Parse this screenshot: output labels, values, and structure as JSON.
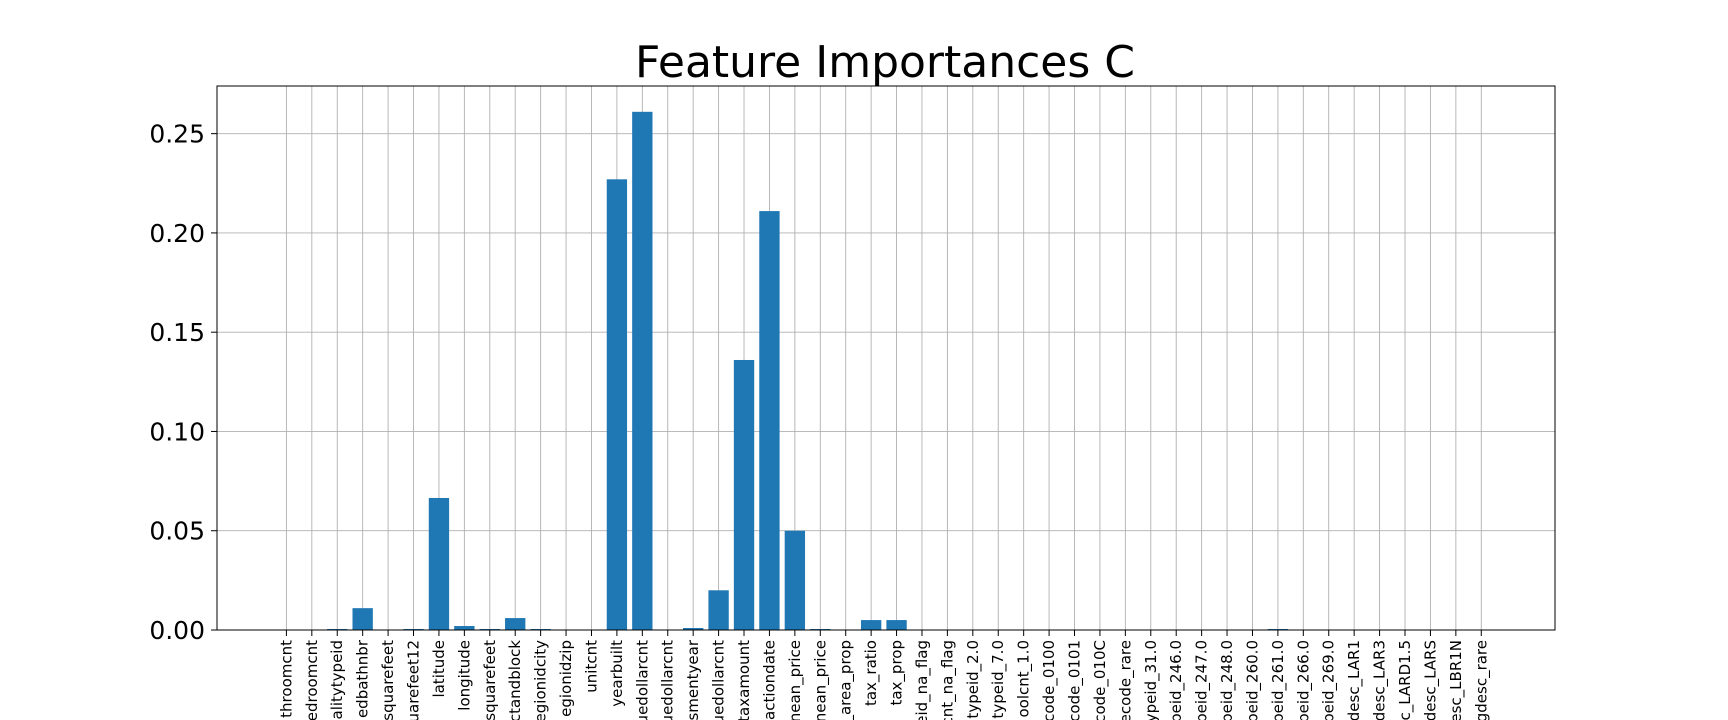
{
  "chart_data": {
    "type": "bar",
    "title": "Feature Importances C",
    "categories": [
      "throomcnt",
      "edroomcnt",
      "alitytypeid",
      "edbathnbr",
      "squarefeet",
      "uarefeet12",
      "latitude",
      "longitude",
      "squarefeet",
      "ctandblock",
      "egionidcity",
      "egionidzip",
      "unitcnt",
      "yearbuilt",
      "uedollarcnt",
      "uedollarcnt",
      "smentyear",
      "uedollarcnt",
      "taxamount",
      "actiondate",
      "nean_price",
      "nean_price",
      "_area_prop",
      "tax_ratio",
      "tax_prop",
      "eid_na_flag",
      "cnt_na_flag",
      "typeid_2.0",
      "typeid_7.0",
      "oolcnt_1.0",
      "code_0100",
      "code_0101",
      "code_010C",
      "ecode_rare",
      "ypeid_31.0",
      "peid_246.0",
      "peid_247.0",
      "peid_248.0",
      "peid_260.0",
      "peid_261.0",
      "peid_266.0",
      "peid_269.0",
      "desc_LAR1",
      "desc_LAR3",
      "c_LARD1.5",
      "desc_LARS",
      "esc_LBR1N",
      "gdesc_rare"
    ],
    "values": [
      0,
      0,
      0.0005,
      0.011,
      0,
      0.0005,
      0.0665,
      0.002,
      0.0005,
      0.006,
      0.0005,
      0,
      0,
      0.227,
      0.261,
      0,
      0.001,
      0.02,
      0.136,
      0.211,
      0.05,
      0.0005,
      0,
      0.005,
      0.005,
      0,
      0,
      0,
      0,
      0,
      0,
      0,
      0,
      0,
      0,
      0,
      0,
      0,
      0,
      0.0005,
      0,
      0,
      0,
      0,
      0,
      0,
      0,
      0
    ],
    "color": "#1f77b4",
    "ylim": [
      0,
      0.274
    ],
    "yticks": [
      {
        "value": 0,
        "label": "0.00"
      },
      {
        "value": 0.05,
        "label": "0.05"
      },
      {
        "value": 0.1,
        "label": "0.10"
      },
      {
        "value": 0.15,
        "label": "0.15"
      },
      {
        "value": 0.2,
        "label": "0.20"
      },
      {
        "value": 0.25,
        "label": "0.25"
      }
    ],
    "grid": true
  }
}
